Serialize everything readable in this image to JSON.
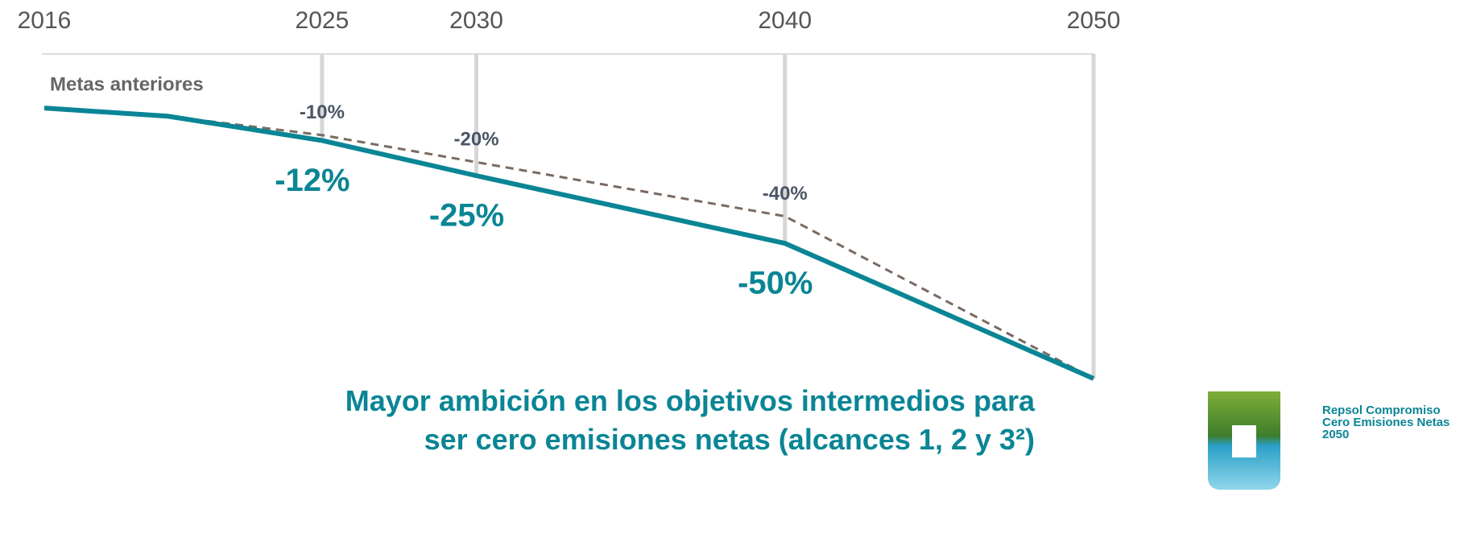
{
  "chart_data": {
    "type": "line",
    "title": "Mayor ambición en los objetivos intermedios para ser cero emisiones netas (alcances 1, 2 y 3²)",
    "logo_text": [
      "Repsol Compromiso",
      "Cero Emisiones Netas",
      "2050"
    ],
    "x": [
      2016,
      2020,
      2025,
      2030,
      2040,
      2050
    ],
    "xlim": [
      2016,
      2050
    ],
    "xticks": [
      2016,
      2025,
      2030,
      2040,
      2050
    ],
    "ylim": [
      -100,
      20
    ],
    "grid": true,
    "series": [
      {
        "color": "#0a8595",
        "dashed": false,
        "values": [
          0,
          -3,
          -12,
          -25,
          -50,
          -100
        ],
        "value_labels": [
          null,
          null,
          "-12%",
          "-25%",
          "-50%",
          null
        ]
      },
      {
        "name": "Metas anteriores",
        "color": "#7a6a62",
        "dashed": true,
        "values": [
          0,
          -3,
          -10,
          -20,
          -40,
          -100
        ],
        "value_labels": [
          null,
          null,
          "-10%",
          "-20%",
          "-40%",
          null
        ]
      }
    ]
  }
}
